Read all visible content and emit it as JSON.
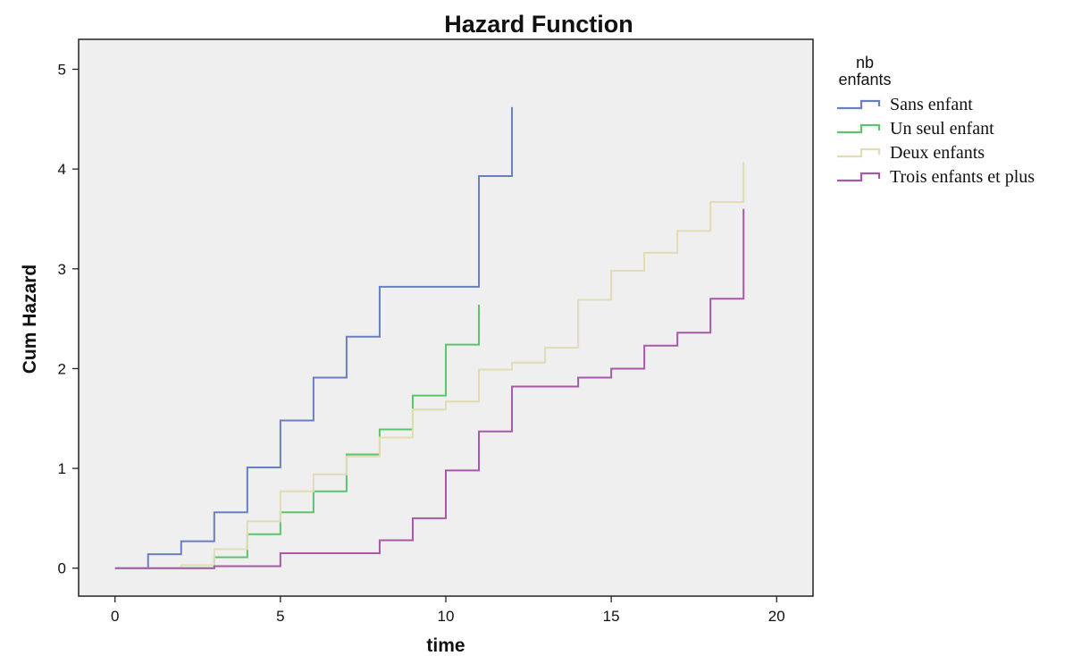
{
  "chart_data": {
    "type": "line",
    "step": true,
    "title": "Hazard Function",
    "xlabel": "time",
    "ylabel": "Cum Hazard",
    "xlim": [
      -1.1,
      21.1
    ],
    "ylim": [
      -0.28,
      5.3
    ],
    "xticks": [
      0,
      5,
      10,
      15,
      20
    ],
    "yticks": [
      0,
      1,
      2,
      3,
      4,
      5
    ],
    "grid": false,
    "background": "#efefef",
    "legend": {
      "title_lines": [
        "nb",
        "enfants"
      ],
      "placement": "right"
    },
    "series": [
      {
        "name": "Sans enfant",
        "color": "#6a7fc2",
        "x": [
          0,
          1,
          2,
          3,
          4,
          5,
          6,
          7,
          8,
          11,
          12,
          12
        ],
        "y": [
          0,
          0.14,
          0.27,
          0.56,
          1.01,
          1.48,
          1.91,
          2.32,
          2.82,
          3.93,
          4.62,
          4.62
        ]
      },
      {
        "name": "Un seul enfant",
        "color": "#5cc46a",
        "x": [
          0,
          3,
          4,
          5,
          6,
          7,
          8,
          9,
          10,
          11,
          11
        ],
        "y": [
          0,
          0.11,
          0.34,
          0.56,
          0.77,
          1.14,
          1.39,
          1.73,
          2.24,
          2.64,
          2.64
        ]
      },
      {
        "name": "Deux enfants",
        "color": "#e1dcb2",
        "x": [
          0,
          2,
          3,
          4,
          5,
          6,
          7,
          8,
          9,
          10,
          11,
          12,
          13,
          14,
          15,
          16,
          17,
          18,
          19,
          19
        ],
        "y": [
          0,
          0.03,
          0.19,
          0.47,
          0.77,
          0.94,
          1.12,
          1.31,
          1.59,
          1.67,
          1.99,
          2.06,
          2.21,
          2.69,
          2.98,
          3.16,
          3.38,
          3.67,
          4.07,
          4.07
        ]
      },
      {
        "name": "Trois enfants et plus",
        "color": "#a55aa8",
        "x": [
          0,
          3,
          5,
          8,
          9,
          10,
          11,
          12,
          14,
          15,
          16,
          17,
          18,
          19,
          19
        ],
        "y": [
          0,
          0.02,
          0.15,
          0.28,
          0.5,
          0.98,
          1.37,
          1.82,
          1.91,
          2.0,
          2.23,
          2.36,
          2.7,
          3.6,
          3.6
        ]
      }
    ]
  }
}
